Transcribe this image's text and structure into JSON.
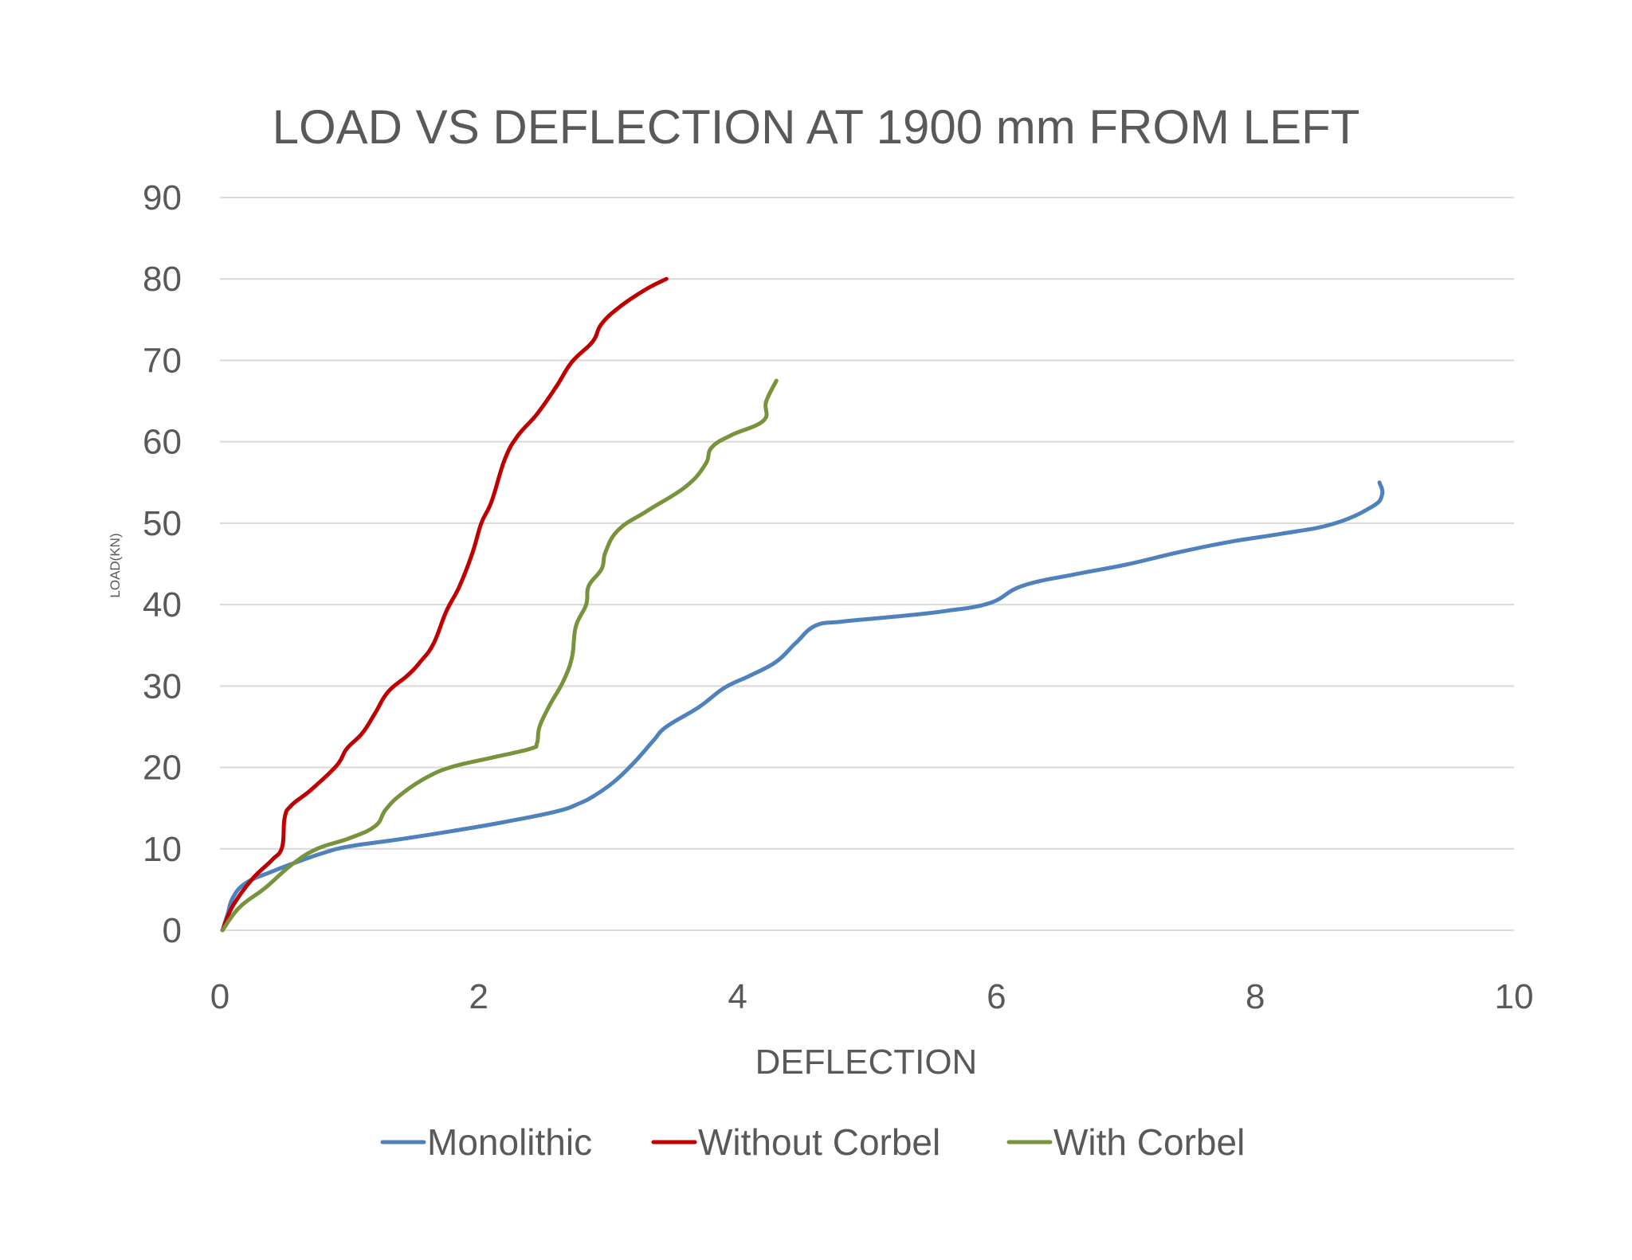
{
  "chart_data": {
    "type": "line",
    "title": "LOAD VS DEFLECTION AT 1900 mm FROM LEFT",
    "xlabel": "DEFLECTION",
    "ylabel": "LOAD(KN)",
    "xlim": [
      0,
      10
    ],
    "ylim": [
      0,
      90
    ],
    "x_ticks": [
      0,
      2,
      4,
      6,
      8,
      10
    ],
    "y_ticks": [
      0,
      10,
      20,
      30,
      40,
      50,
      60,
      70,
      80,
      90
    ],
    "grid": "horizontal",
    "legend": "bottom",
    "series": [
      {
        "name": "Monolithic",
        "color": "#4F81BD",
        "points": [
          [
            0.02,
            0
          ],
          [
            0.06,
            2
          ],
          [
            0.1,
            4
          ],
          [
            0.2,
            5.8
          ],
          [
            0.4,
            7.2
          ],
          [
            0.6,
            8.4
          ],
          [
            0.8,
            9.5
          ],
          [
            1.0,
            10.3
          ],
          [
            1.4,
            11.2
          ],
          [
            1.8,
            12.2
          ],
          [
            2.2,
            13.3
          ],
          [
            2.6,
            14.6
          ],
          [
            2.78,
            15.6
          ],
          [
            2.9,
            16.6
          ],
          [
            3.05,
            18.3
          ],
          [
            3.2,
            20.6
          ],
          [
            3.35,
            23.3
          ],
          [
            3.45,
            25
          ],
          [
            3.7,
            27.4
          ],
          [
            3.9,
            29.8
          ],
          [
            4.1,
            31.3
          ],
          [
            4.3,
            33
          ],
          [
            4.45,
            35.3
          ],
          [
            4.6,
            37.4
          ],
          [
            4.8,
            37.9
          ],
          [
            5.2,
            38.5
          ],
          [
            5.6,
            39.2
          ],
          [
            5.95,
            40.2
          ],
          [
            6.2,
            42.3
          ],
          [
            6.6,
            43.7
          ],
          [
            7.0,
            44.9
          ],
          [
            7.4,
            46.4
          ],
          [
            7.8,
            47.7
          ],
          [
            8.2,
            48.7
          ],
          [
            8.6,
            49.9
          ],
          [
            8.9,
            52
          ],
          [
            8.98,
            53.5
          ],
          [
            8.96,
            55
          ]
        ]
      },
      {
        "name": "Without Corbel",
        "color": "#C00000",
        "points": [
          [
            0.02,
            0
          ],
          [
            0.1,
            3
          ],
          [
            0.25,
            6.3
          ],
          [
            0.4,
            8.6
          ],
          [
            0.48,
            10.2
          ],
          [
            0.5,
            13.8
          ],
          [
            0.55,
            15.3
          ],
          [
            0.7,
            17.2
          ],
          [
            0.9,
            20.2
          ],
          [
            0.98,
            22.3
          ],
          [
            1.1,
            24.2
          ],
          [
            1.2,
            26.7
          ],
          [
            1.3,
            29.3
          ],
          [
            1.45,
            31.3
          ],
          [
            1.55,
            33
          ],
          [
            1.65,
            35.2
          ],
          [
            1.75,
            39.2
          ],
          [
            1.85,
            42.2
          ],
          [
            1.95,
            46.3
          ],
          [
            2.02,
            50
          ],
          [
            2.1,
            52.7
          ],
          [
            2.2,
            57.8
          ],
          [
            2.3,
            60.7
          ],
          [
            2.45,
            63.4
          ],
          [
            2.6,
            66.8
          ],
          [
            2.72,
            69.8
          ],
          [
            2.88,
            72.3
          ],
          [
            2.95,
            74.5
          ],
          [
            3.1,
            76.7
          ],
          [
            3.3,
            78.8
          ],
          [
            3.45,
            80
          ]
        ]
      },
      {
        "name": "With Corbel",
        "color": "#77933C",
        "points": [
          [
            0.02,
            0
          ],
          [
            0.15,
            2.8
          ],
          [
            0.35,
            5.2
          ],
          [
            0.55,
            8
          ],
          [
            0.75,
            10
          ],
          [
            1.0,
            11.3
          ],
          [
            1.2,
            12.8
          ],
          [
            1.28,
            14.8
          ],
          [
            1.4,
            16.7
          ],
          [
            1.6,
            18.8
          ],
          [
            1.8,
            20.1
          ],
          [
            2.1,
            21.2
          ],
          [
            2.4,
            22.3
          ],
          [
            2.45,
            23
          ],
          [
            2.47,
            25
          ],
          [
            2.55,
            27.7
          ],
          [
            2.65,
            30.5
          ],
          [
            2.72,
            33.5
          ],
          [
            2.75,
            37.3
          ],
          [
            2.83,
            40
          ],
          [
            2.85,
            42.3
          ],
          [
            2.95,
            44.4
          ],
          [
            2.98,
            46.5
          ],
          [
            3.08,
            49.2
          ],
          [
            3.3,
            51.5
          ],
          [
            3.6,
            54.5
          ],
          [
            3.75,
            57.2
          ],
          [
            3.8,
            59.3
          ],
          [
            3.95,
            60.8
          ],
          [
            4.2,
            62.6
          ],
          [
            4.22,
            64.9
          ],
          [
            4.3,
            67.5
          ]
        ]
      }
    ]
  }
}
